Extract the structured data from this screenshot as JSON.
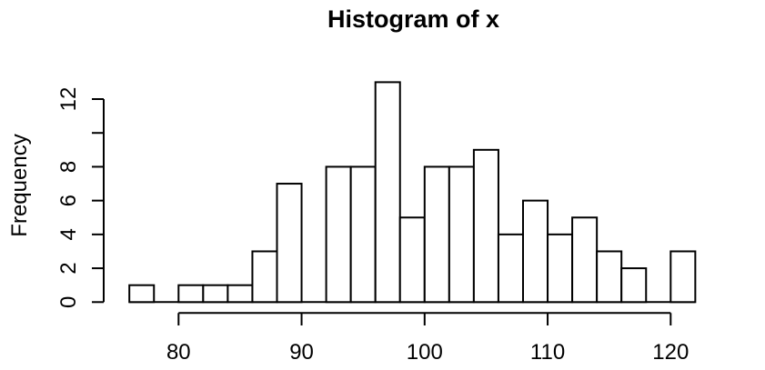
{
  "figure": {
    "title": "Histogram of x",
    "ylabel": "Frequency"
  },
  "chart_data": {
    "type": "bar",
    "subtype": "histogram",
    "title": "Histogram of x",
    "ylabel": "Frequency",
    "breaks": [
      76,
      78,
      80,
      82,
      84,
      86,
      88,
      90,
      92,
      94,
      96,
      98,
      100,
      102,
      104,
      106,
      108,
      110,
      112,
      114,
      116,
      118,
      120,
      122
    ],
    "counts": [
      1,
      0,
      1,
      1,
      1,
      3,
      7,
      0,
      8,
      8,
      13,
      5,
      8,
      8,
      9,
      4,
      6,
      4,
      5,
      3,
      2,
      0,
      3
    ],
    "x_ticks": [
      80,
      90,
      100,
      110,
      120
    ],
    "x_tick_labels": [
      "80",
      "90",
      "100",
      "110",
      "120"
    ],
    "y_ticks": [
      0,
      2,
      4,
      6,
      8,
      10,
      12
    ],
    "y_tick_labels": [
      "0",
      "2",
      "4",
      "6",
      "8",
      "",
      "12"
    ],
    "xlim": [
      76,
      122
    ],
    "ylim": [
      0,
      13
    ],
    "grid": false,
    "legend": null,
    "bar_fill": "#ffffff",
    "line_color": "#000000"
  }
}
